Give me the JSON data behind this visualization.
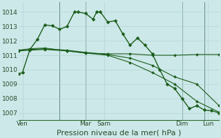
{
  "background_color": "#cce8e8",
  "grid_color_major": "#b0d0d0",
  "grid_color_minor": "#c0dede",
  "line_color": "#1a5c1a",
  "marker_style": "D",
  "marker_size": 2.5,
  "xlabel": "Pression niveau de la mer( hPa )",
  "ylim": [
    1006.5,
    1014.7
  ],
  "xlim": [
    0,
    27
  ],
  "yticks": [
    1007,
    1008,
    1009,
    1010,
    1011,
    1012,
    1013,
    1014
  ],
  "xlabel_fontsize": 8,
  "tick_fontsize": 6.5,
  "series": [
    {
      "x": [
        0,
        0.5,
        1.5,
        2.5,
        3.5,
        4.5,
        5.5,
        6.5,
        7.5,
        8,
        9,
        10,
        10.5,
        11,
        12,
        13,
        14,
        15,
        16,
        17,
        18,
        19,
        20,
        21,
        22,
        23,
        24,
        25,
        26,
        27
      ],
      "y": [
        1009.7,
        1009.8,
        1011.4,
        1012.1,
        1013.1,
        1013.05,
        1012.8,
        1013.0,
        1014.0,
        1014.0,
        1013.9,
        1013.5,
        1014.0,
        1014.0,
        1013.3,
        1013.4,
        1012.5,
        1011.7,
        1012.2,
        1011.7,
        1011.1,
        1010.0,
        1009.0,
        1008.7,
        1008.0,
        1007.3,
        1007.5,
        1007.2,
        1007.15,
        1007.0
      ]
    },
    {
      "x": [
        0,
        1.5,
        3.5,
        6.5,
        9,
        12,
        15,
        18,
        21,
        24,
        27
      ],
      "y": [
        1011.35,
        1011.45,
        1011.5,
        1011.3,
        1011.15,
        1011.1,
        1011.1,
        1011.0,
        1011.0,
        1011.05,
        1011.05
      ]
    },
    {
      "x": [
        0,
        1.5,
        3.5,
        6.5,
        9,
        12,
        15,
        18,
        21,
        24,
        27
      ],
      "y": [
        1011.35,
        1011.4,
        1011.45,
        1011.35,
        1011.2,
        1011.05,
        1010.8,
        1010.3,
        1009.5,
        1009.0,
        1007.5
      ]
    },
    {
      "x": [
        0,
        1.5,
        3.5,
        6.5,
        9,
        12,
        15,
        18,
        21,
        24,
        27
      ],
      "y": [
        1011.3,
        1011.35,
        1011.4,
        1011.3,
        1011.15,
        1011.0,
        1010.5,
        1009.8,
        1009.0,
        1007.8,
        1007.05
      ]
    }
  ],
  "vlines_x": [
    5.5,
    9,
    22,
    25
  ],
  "xtick_positions": [
    0.5,
    9,
    11.5,
    22,
    25.5
  ],
  "xtick_labels": [
    "Ven",
    "Mar",
    "Sam",
    "Dim",
    "Lun"
  ]
}
